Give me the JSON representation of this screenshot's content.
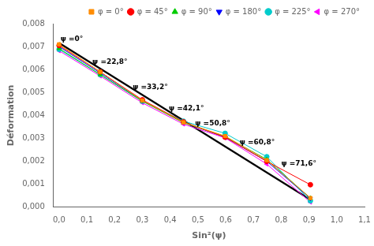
{
  "chart_data": {
    "type": "line",
    "xlabel": "Sin²(ψ)",
    "ylabel": "Déformation",
    "xlim": [
      -0.02,
      1.1
    ],
    "ylim": [
      0.0,
      0.008
    ],
    "xticks": [
      {
        "value": 0.0,
        "label": "0,0"
      },
      {
        "value": 0.1,
        "label": "0,1"
      },
      {
        "value": 0.2,
        "label": "0,2"
      },
      {
        "value": 0.3,
        "label": "0,3"
      },
      {
        "value": 0.4,
        "label": "0,4"
      },
      {
        "value": 0.5,
        "label": "0,5"
      },
      {
        "value": 0.6,
        "label": "0,6"
      },
      {
        "value": 0.7,
        "label": "0,7"
      },
      {
        "value": 0.8,
        "label": "0,8"
      },
      {
        "value": 0.9,
        "label": "0,9"
      },
      {
        "value": 1.0,
        "label": "1,0"
      },
      {
        "value": 1.1,
        "label": "1,1"
      }
    ],
    "yticks": [
      {
        "value": 0.0,
        "label": "0,000"
      },
      {
        "value": 0.001,
        "label": "0,001"
      },
      {
        "value": 0.002,
        "label": "0,002"
      },
      {
        "value": 0.003,
        "label": "0,003"
      },
      {
        "value": 0.004,
        "label": "0,004"
      },
      {
        "value": 0.005,
        "label": "0,005"
      },
      {
        "value": 0.006,
        "label": "0,006"
      },
      {
        "value": 0.007,
        "label": "0,007"
      },
      {
        "value": 0.008,
        "label": "0,008"
      }
    ],
    "grid": false,
    "legend": "upper right",
    "series": [
      {
        "color": "#000000",
        "marker": "none",
        "x": [
          0.0,
          0.905
        ],
        "values": [
          0.00716,
          0.00033
        ]
      },
      {
        "name": "φ = 0°",
        "color": "#FF8C00",
        "marker": "square",
        "x": [
          0.0,
          0.148,
          0.3,
          0.448,
          0.598,
          0.748,
          0.905
        ],
        "values": [
          0.0071,
          0.0059,
          0.00465,
          0.0037,
          0.0031,
          0.00205,
          0.0004
        ]
      },
      {
        "name": "φ = 45°",
        "color": "#FF0000",
        "marker": "circle",
        "x": [
          0.0,
          0.148,
          0.3,
          0.448,
          0.598,
          0.748,
          0.905
        ],
        "values": [
          0.00705,
          0.0059,
          0.00468,
          0.00372,
          0.00305,
          0.002,
          0.00098
        ]
      },
      {
        "name": "φ = 90°",
        "color": "#00CC00",
        "marker": "triangle_up",
        "x": [
          0.0,
          0.148,
          0.3,
          0.448,
          0.598,
          0.748,
          0.905
        ],
        "values": [
          0.00692,
          0.00578,
          0.00462,
          0.00368,
          0.00308,
          0.00208,
          0.0004
        ]
      },
      {
        "name": "φ = 180°",
        "color": "#0000FF",
        "marker": "triangle_down",
        "x": [
          0.0,
          0.148,
          0.3,
          0.448,
          0.598,
          0.748,
          0.905
        ],
        "values": [
          0.007,
          0.00585,
          0.00465,
          0.0037,
          0.00305,
          0.002,
          0.00038
        ]
      },
      {
        "name": "φ = 225°",
        "color": "#00CCCC",
        "marker": "circle",
        "x": [
          0.0,
          0.148,
          0.3,
          0.448,
          0.598,
          0.748,
          0.905
        ],
        "values": [
          0.00688,
          0.00578,
          0.00462,
          0.00375,
          0.00322,
          0.0022,
          0.00028
        ]
      },
      {
        "name": "φ = 270°",
        "color": "#FF00FF",
        "marker": "triangle_left",
        "x": [
          0.0,
          0.148,
          0.3,
          0.448,
          0.598,
          0.748,
          0.905
        ],
        "values": [
          0.00682,
          0.00572,
          0.00455,
          0.00362,
          0.00302,
          0.00188,
          0.00022
        ]
      }
    ],
    "annotations": [
      {
        "text": "ψ =0°",
        "x": 0.005,
        "y": 0.00718
      },
      {
        "text": "ψ =22,8°",
        "x": 0.12,
        "y": 0.00618
      },
      {
        "text": "ψ =33,2°",
        "x": 0.265,
        "y": 0.00508
      },
      {
        "text": "ψ =42,1°",
        "x": 0.395,
        "y": 0.00415
      },
      {
        "text": "ψ =50,8°",
        "x": 0.49,
        "y": 0.00348
      },
      {
        "text": "ψ =60,8°",
        "x": 0.65,
        "y": 0.00268
      },
      {
        "text": "ψ =71,6°",
        "x": 0.8,
        "y": 0.00175
      }
    ]
  }
}
